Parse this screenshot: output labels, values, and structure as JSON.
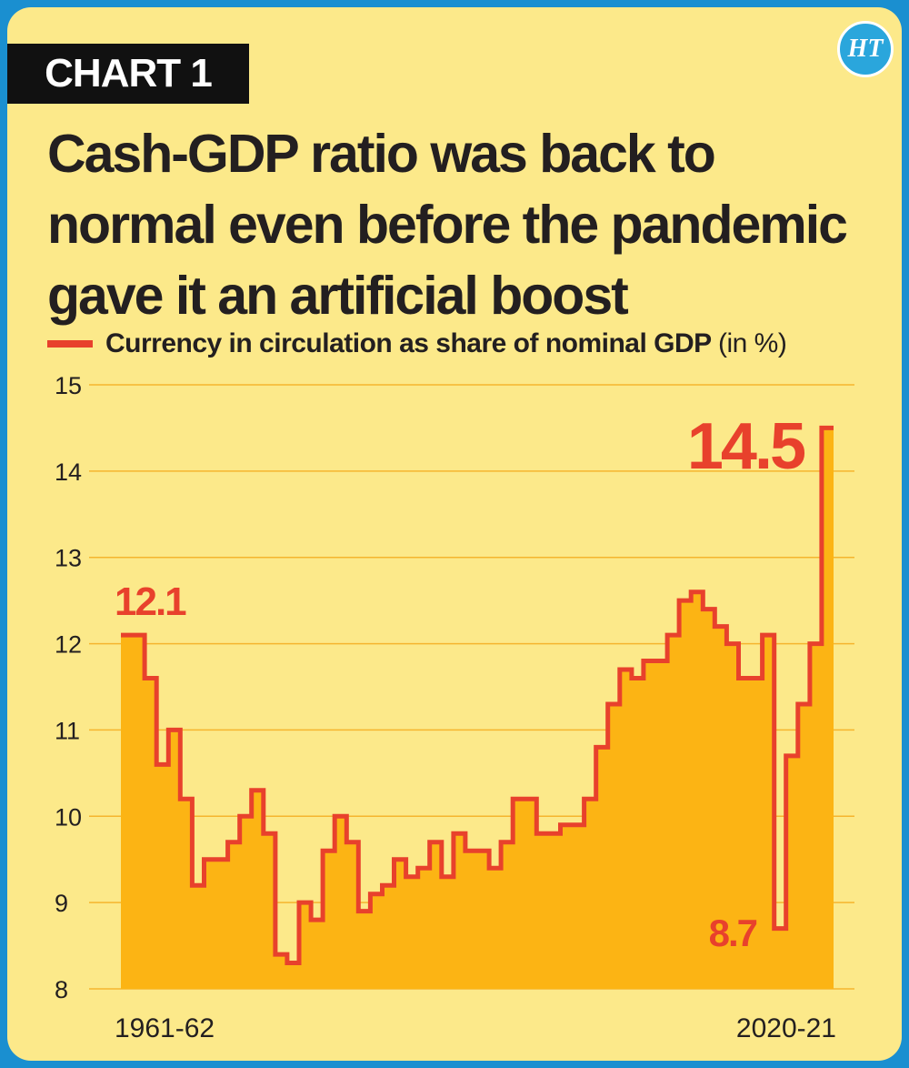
{
  "header": {
    "tag": "CHART 1",
    "logo_text": "HT",
    "title": "Cash-GDP ratio was back to normal even before the pandemic gave it an artificial boost"
  },
  "legend": {
    "label": "Currency in circulation as share of nominal GDP",
    "unit": "(in %)"
  },
  "colors": {
    "background": "#fce98a",
    "area": "#fcb414",
    "line": "#e8412c",
    "grid": "#f5b52e",
    "text": "#231f20",
    "frame": "#1a8fd0"
  },
  "chart_data": {
    "type": "area",
    "title": "Cash-GDP ratio was back to normal even before the pandemic gave it an artificial boost",
    "series_name": "Currency in circulation as share of nominal GDP (in %)",
    "xlabel": "",
    "ylabel": "",
    "ylim": [
      8,
      15
    ],
    "yticks": [
      8,
      9,
      10,
      11,
      12,
      13,
      14,
      15
    ],
    "x_tick_labels": [
      "1961-62",
      "2020-21"
    ],
    "x_start_year": 1961,
    "values": [
      12.1,
      12.1,
      11.6,
      10.6,
      11.0,
      10.2,
      9.2,
      9.5,
      9.5,
      9.7,
      10.0,
      10.3,
      9.8,
      8.4,
      8.3,
      9.0,
      8.8,
      9.6,
      10.0,
      9.7,
      8.9,
      9.1,
      9.2,
      9.5,
      9.3,
      9.4,
      9.7,
      9.3,
      9.8,
      9.6,
      9.6,
      9.4,
      9.7,
      10.2,
      10.2,
      9.8,
      9.8,
      9.9,
      9.9,
      10.2,
      10.8,
      11.3,
      11.7,
      11.6,
      11.8,
      11.8,
      12.1,
      12.5,
      12.6,
      12.4,
      12.2,
      12.0,
      11.6,
      11.6,
      12.1,
      8.7,
      10.7,
      11.3,
      12.0,
      14.5
    ],
    "annotations": [
      {
        "text": "12.1",
        "index": 0
      },
      {
        "text": "8.7",
        "index": 55
      },
      {
        "text": "14.5",
        "index": 59
      }
    ],
    "grid": true
  }
}
